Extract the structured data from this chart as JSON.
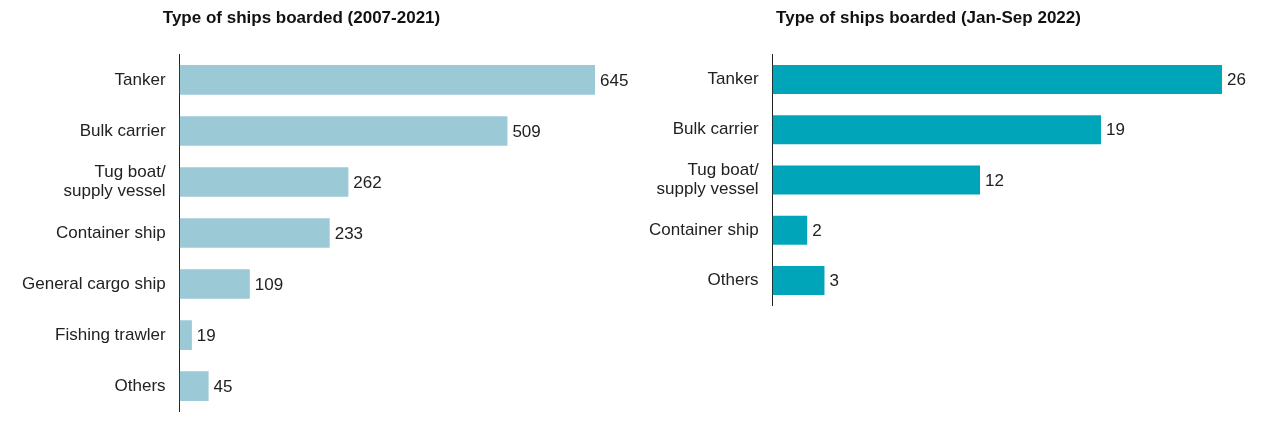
{
  "chart_data": [
    {
      "type": "bar",
      "orientation": "horizontal",
      "title": "Type of ships boarded (2007-2021)",
      "categories": [
        "Tanker",
        "Bulk carrier",
        "Tug boat/\nsupply vessel",
        "Container ship",
        "General cargo ship",
        "Fishing trawler",
        "Others"
      ],
      "values": [
        645,
        509,
        262,
        233,
        109,
        19,
        45
      ],
      "color": "#9bc9d6",
      "data_labels": true
    },
    {
      "type": "bar",
      "orientation": "horizontal",
      "title": "Type of ships boarded (Jan-Sep 2022)",
      "categories": [
        "Tanker",
        "Bulk carrier",
        "Tug boat/\nsupply vessel",
        "Container ship",
        "Others"
      ],
      "values": [
        26,
        19,
        12,
        2,
        3
      ],
      "color": "#00a5b9",
      "data_labels": true
    }
  ]
}
